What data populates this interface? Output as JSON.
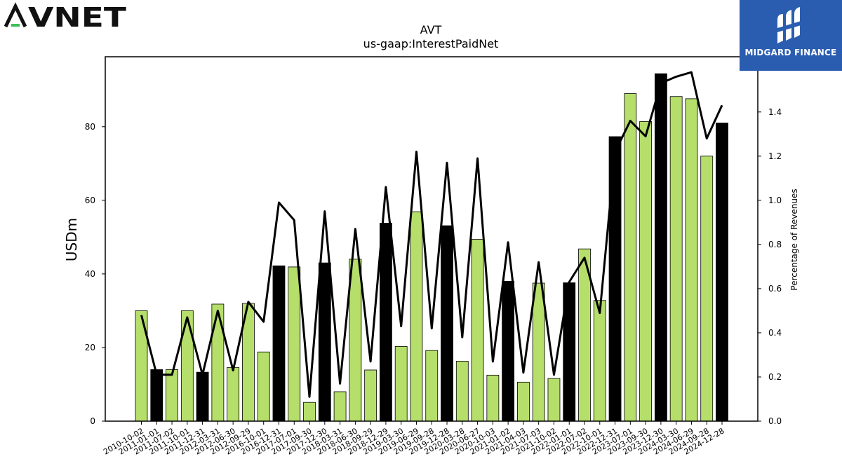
{
  "brand": {
    "left_logo_text": "AVNET",
    "right_logo_text": "MIDGARD FINANCE",
    "bar_color_a": "#b5de6b",
    "bar_color_b": "#000000",
    "right_logo_bg": "#2a5db0"
  },
  "chart_data": {
    "type": "bar",
    "title": "AVT",
    "subtitle": "us-gaap:InterestPaidNet",
    "ylabel": "USDm",
    "y2label": "Percentage of Revenues",
    "ylim": [
      0,
      99
    ],
    "y2lim": [
      0,
      1.65
    ],
    "yticks": [
      0,
      20,
      40,
      60,
      80
    ],
    "y2ticks": [
      0.0,
      0.2,
      0.4,
      0.6,
      0.8,
      1.0,
      1.2,
      1.4
    ],
    "categories": [
      "2010-10-02",
      "2011-01-01",
      "2011-07-02",
      "2011-10-01",
      "2011-12-31",
      "2012-03-31",
      "2012-06-30",
      "2012-09-29",
      "2016-10-01",
      "2016-12-31",
      "2017-07-01",
      "2017-09-30",
      "2017-12-30",
      "2018-03-31",
      "2018-06-30",
      "2018-09-29",
      "2018-12-29",
      "2019-03-30",
      "2019-06-29",
      "2019-09-28",
      "2019-12-28",
      "2020-03-28",
      "2020-06-27",
      "2020-10-03",
      "2021-01-02",
      "2021-04-03",
      "2021-07-03",
      "2021-10-02",
      "2022-01-01",
      "2022-07-02",
      "2022-10-01",
      "2022-12-31",
      "2023-07-01",
      "2023-09-30",
      "2023-12-30",
      "2024-03-30",
      "2024-06-29",
      "2024-09-28",
      "2024-12-28"
    ],
    "series": [
      {
        "type": "bar",
        "values": [
          30.0,
          14.0,
          14.0,
          30.0,
          13.3,
          31.8,
          14.6,
          32.0,
          18.8,
          42.2,
          41.9,
          5.1,
          43.0,
          8.0,
          44.0,
          13.9,
          53.8,
          20.3,
          56.9,
          19.2,
          53.1,
          16.3,
          49.4,
          12.5,
          38.0,
          10.6,
          37.5,
          11.6,
          37.6,
          46.8,
          32.8,
          77.3,
          89.0,
          81.4,
          94.4,
          88.2,
          87.6,
          72.0,
          81.0
        ],
        "highlight": [
          false,
          true,
          false,
          false,
          true,
          false,
          false,
          false,
          false,
          true,
          false,
          false,
          true,
          false,
          false,
          false,
          true,
          false,
          false,
          false,
          true,
          false,
          false,
          false,
          true,
          false,
          false,
          false,
          true,
          false,
          false,
          true,
          false,
          false,
          true,
          false,
          false,
          false,
          true
        ]
      },
      {
        "type": "line",
        "axis": "right",
        "values": [
          0.48,
          0.21,
          0.21,
          0.47,
          0.21,
          0.5,
          0.23,
          0.54,
          0.45,
          0.99,
          0.91,
          0.11,
          0.95,
          0.17,
          0.87,
          0.27,
          1.06,
          0.43,
          1.22,
          0.42,
          1.17,
          0.38,
          1.19,
          0.27,
          0.81,
          0.22,
          0.72,
          0.21,
          0.63,
          0.74,
          0.49,
          1.22,
          1.36,
          1.29,
          1.53,
          1.56,
          1.58,
          1.28,
          1.43
        ]
      }
    ],
    "grid": false,
    "legend": "none"
  }
}
